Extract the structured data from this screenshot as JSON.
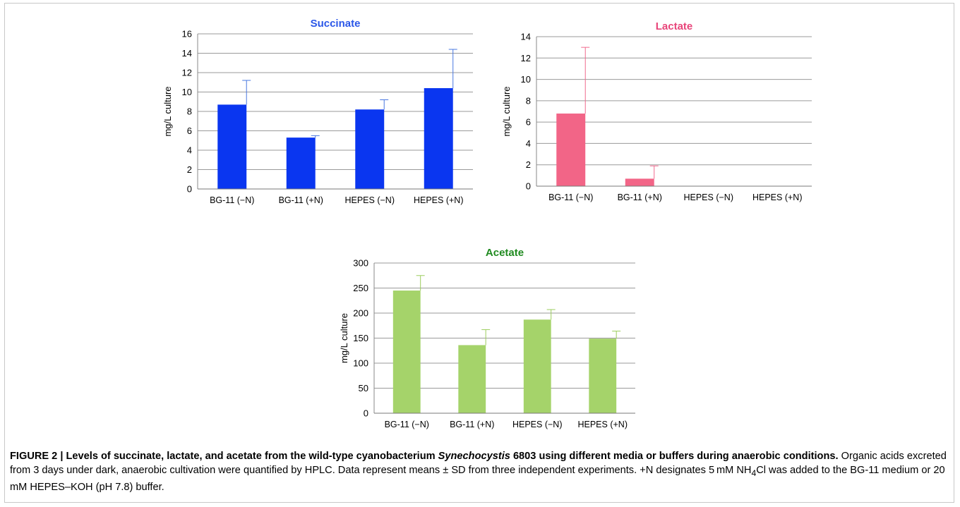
{
  "chart_data": [
    {
      "type": "bar",
      "title": "Succinate",
      "title_color": "#2b57e8",
      "bar_color": "#0a36f0",
      "err_color": "#4a78e0",
      "ylabel": "mg/L culture",
      "categories": [
        "BG-11 (−N)",
        "BG-11 (+N)",
        "HEPES (−N)",
        "HEPES (+N)"
      ],
      "values": [
        8.7,
        5.3,
        8.2,
        10.4
      ],
      "errors": [
        2.5,
        0.2,
        1.0,
        4.0
      ],
      "ylim": [
        0,
        16
      ],
      "yticks": [
        "0",
        "2",
        "4",
        "6",
        "8",
        "10",
        "12",
        "14",
        "16"
      ],
      "grid": true
    },
    {
      "type": "bar",
      "title": "Lactate",
      "title_color": "#e8457a",
      "bar_color": "#f26587",
      "err_color": "#f06a8e",
      "ylabel": "mg/L culture",
      "categories": [
        "BG-11 (−N)",
        "BG-11 (+N)",
        "HEPES (−N)",
        "HEPES (+N)"
      ],
      "values": [
        6.8,
        0.7,
        0,
        0
      ],
      "errors": [
        6.2,
        1.2,
        0,
        0
      ],
      "ylim": [
        0,
        14
      ],
      "yticks": [
        "0",
        "2",
        "4",
        "6",
        "8",
        "10",
        "12",
        "14"
      ],
      "grid": true
    },
    {
      "type": "bar",
      "title": "Acetate",
      "title_color": "#1f8a1f",
      "bar_color": "#a5d36a",
      "err_color": "#9ccd5e",
      "ylabel": "mg/L culture",
      "categories": [
        "BG-11 (−N)",
        "BG-11 (+N)",
        "HEPES (−N)",
        "HEPES (+N)"
      ],
      "values": [
        245,
        136,
        187,
        149
      ],
      "errors": [
        30,
        31,
        20,
        15
      ],
      "ylim": [
        0,
        300
      ],
      "yticks": [
        "0",
        "50",
        "100",
        "150",
        "200",
        "250",
        "300"
      ],
      "grid": true
    }
  ],
  "caption": {
    "bold_part1": "FIGURE 2 | Levels of succinate, lactate, and acetate from the wild-type cyanobacterium ",
    "bold_italic": "Synechocystis",
    "bold_part2": " 6803 using different media or buffers during anaerobic conditions.",
    "text_part1": " Organic acids excreted from 3 days under dark, anaerobic cultivation were quantified by HPLC. Data represent means ± SD from three independent experiments. +N designates 5 mM NH",
    "sub": "4",
    "text_part2": "Cl was added to the BG-11 medium or 20 mM HEPES–KOH (pH 7.8) buffer."
  }
}
